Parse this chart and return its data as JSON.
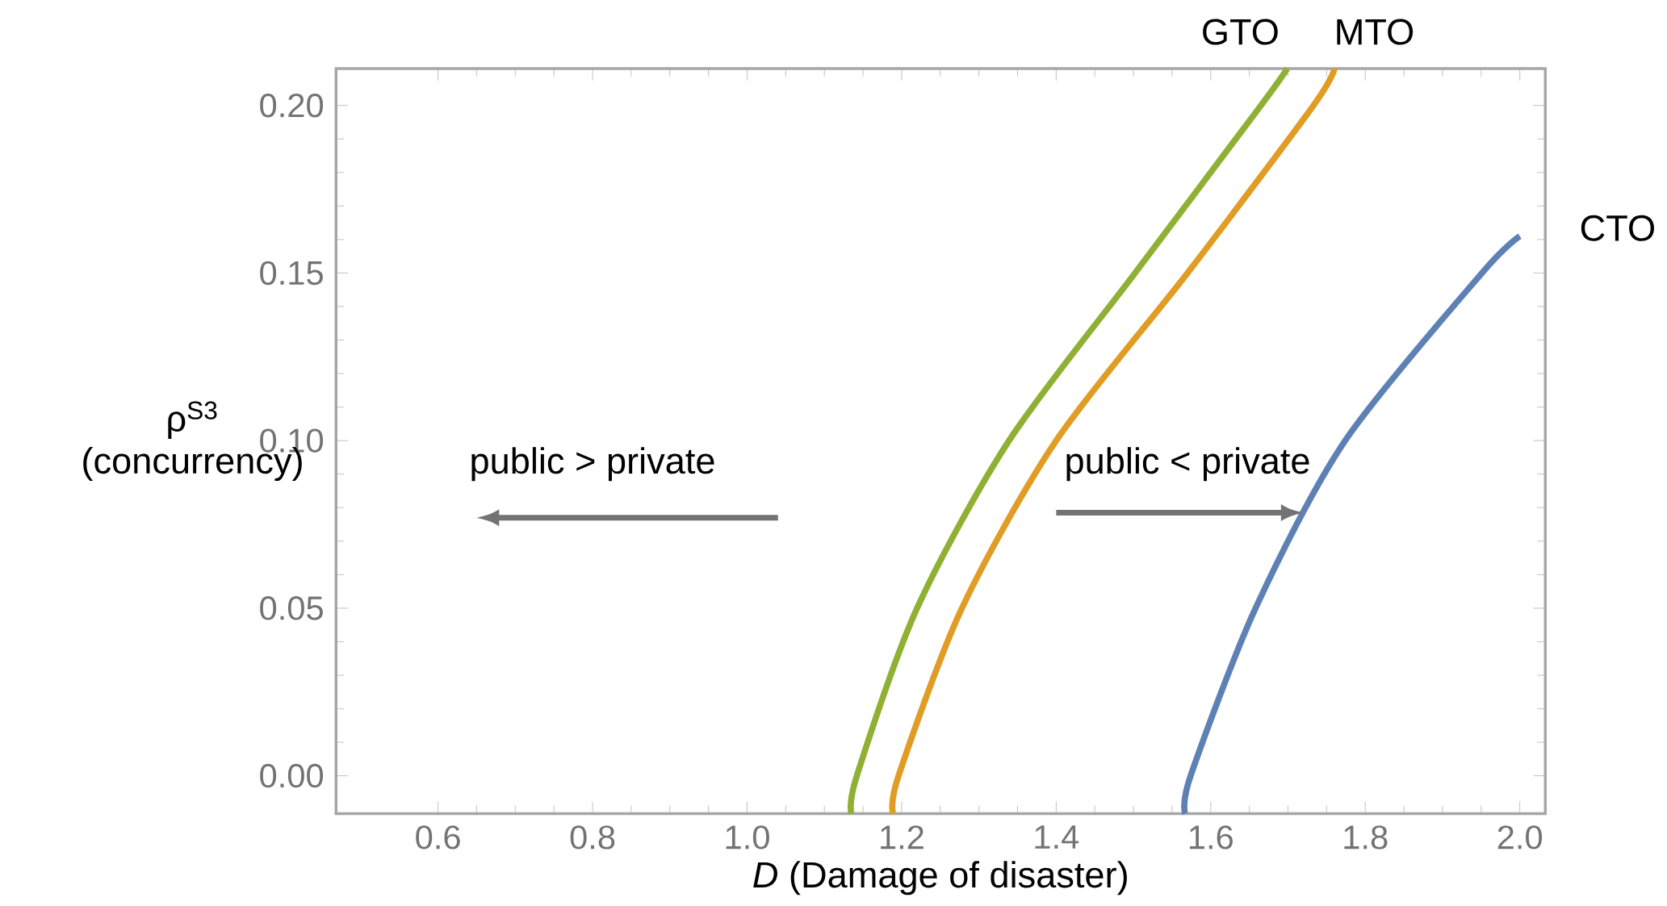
{
  "chart_data": {
    "type": "line",
    "xlabel": "*D* (Damage of disaster)",
    "ylabel": "ρ$^{S3}$ (concurrency)",
    "xlim": [
      0.468,
      2.033
    ],
    "ylim": [
      -0.0113,
      0.211
    ],
    "xticks": [
      {
        "value": 0.6,
        "label": "0.6"
      },
      {
        "value": 0.8,
        "label": "0.8"
      },
      {
        "value": 1.0,
        "label": "1.0"
      },
      {
        "value": 1.2,
        "label": "1.2"
      },
      {
        "value": 1.4,
        "label": "1.4"
      },
      {
        "value": 1.6,
        "label": "1.6"
      },
      {
        "value": 1.8,
        "label": "1.8"
      },
      {
        "value": 2.0,
        "label": "2.0"
      }
    ],
    "yticks": [
      {
        "value": 0,
        "label": "0.00"
      },
      {
        "value": 0.05,
        "label": "0.05"
      },
      {
        "value": 0.1,
        "label": "0.10"
      },
      {
        "value": 0.15,
        "label": "0.15"
      },
      {
        "value": 0.2,
        "label": "0.20"
      }
    ],
    "series": [
      {
        "name": "GTO",
        "color": "#8fb032",
        "x": [
          1.135,
          1.142,
          1.22,
          1.339,
          1.502,
          1.665,
          1.699
        ],
        "values": [
          -0.0113,
          0,
          0.05,
          0.1,
          0.15,
          0.2,
          0.211
        ]
      },
      {
        "name": "MTO",
        "color": "#e19c24",
        "x": [
          1.189,
          1.196,
          1.278,
          1.4,
          1.57,
          1.733,
          1.76
        ],
        "values": [
          -0.0113,
          0,
          0.05,
          0.1,
          0.15,
          0.2,
          0.211
        ]
      },
      {
        "name": "CTO",
        "color": "#5e81b5",
        "x": [
          1.567,
          1.574,
          1.658,
          1.774,
          1.951,
          2.0
        ],
        "values": [
          -0.0113,
          0,
          0.05,
          0.1,
          0.15,
          0.161
        ]
      }
    ],
    "annotations": [
      "public > private",
      "public < private"
    ],
    "grid": false,
    "marker": "none",
    "line_style": "solid"
  }
}
